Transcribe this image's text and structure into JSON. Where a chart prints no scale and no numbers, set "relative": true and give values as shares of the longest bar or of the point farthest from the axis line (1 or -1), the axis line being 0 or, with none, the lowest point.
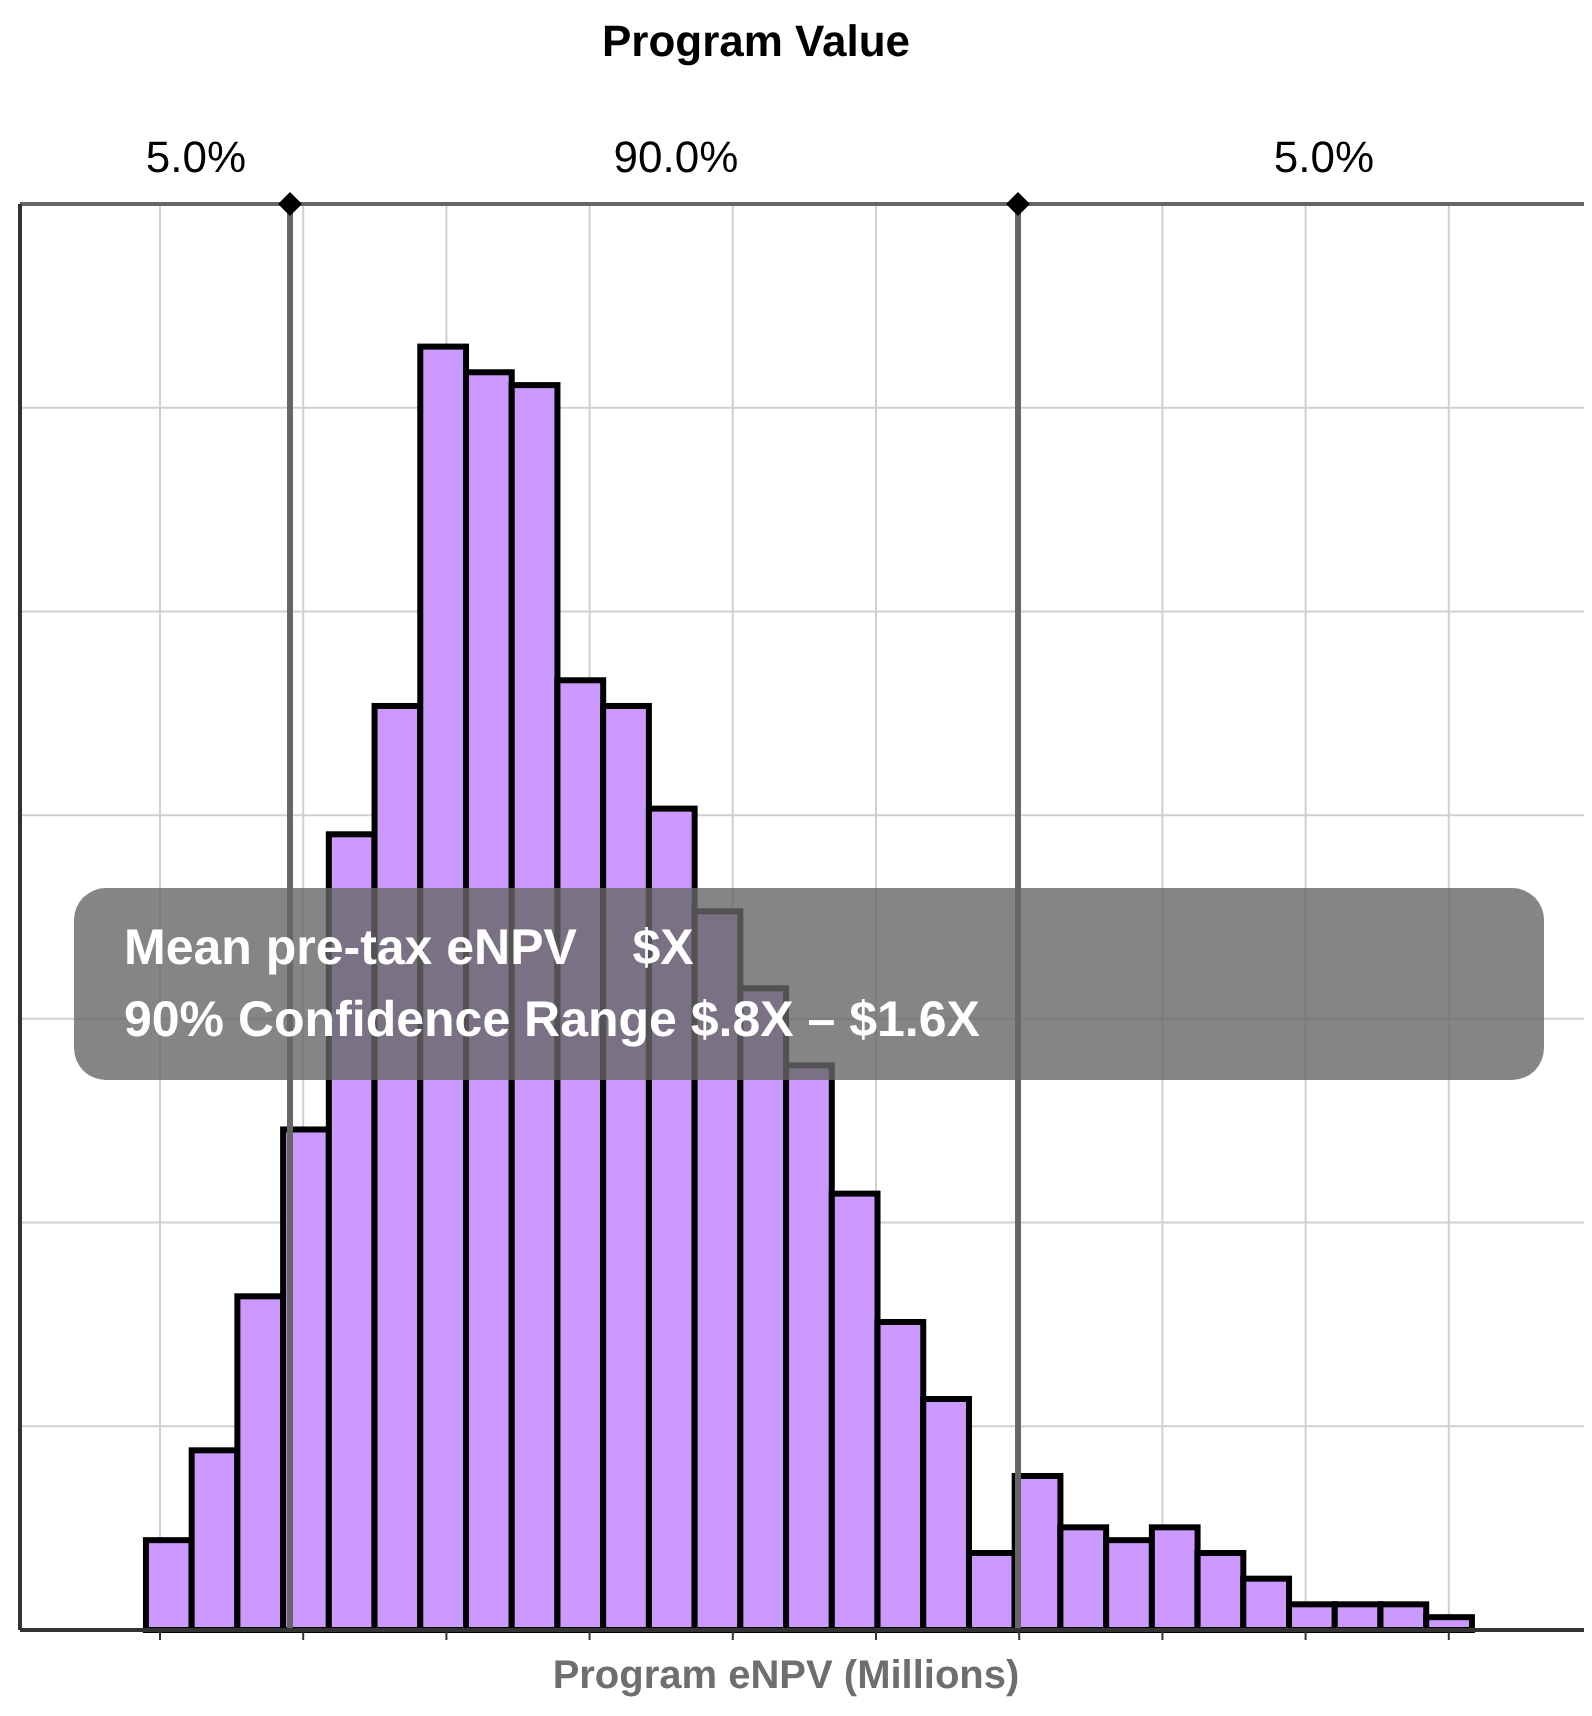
{
  "chart_data": {
    "type": "bar",
    "title": "Program Value",
    "xlabel": "Program eNPV (Millions)",
    "relative": true,
    "categories": [
      null,
      null,
      null,
      null,
      null,
      null,
      null,
      null,
      null,
      null,
      null,
      null,
      null,
      null,
      null,
      null,
      null,
      null,
      null,
      null,
      null,
      null,
      null,
      null,
      null,
      null,
      null,
      null,
      null
    ],
    "values": [
      0.07,
      0.14,
      0.26,
      0.39,
      0.62,
      0.72,
      1,
      0.98,
      0.97,
      0.74,
      0.72,
      0.64,
      0.56,
      0.5,
      0.44,
      0.34,
      0.24,
      0.18,
      0.06,
      0.12,
      0.08,
      0.07,
      0.08,
      0.06,
      0.04,
      0.02,
      0.02,
      0.02,
      0.01
    ],
    "color": "#cc99ff",
    "grid": true,
    "annotations": [
      "5.0%",
      "90.0%",
      "5.0%",
      "Mean pre-tax eNPV    $X",
      "90% Confidence Range $.8X – $1.6X"
    ]
  }
}
